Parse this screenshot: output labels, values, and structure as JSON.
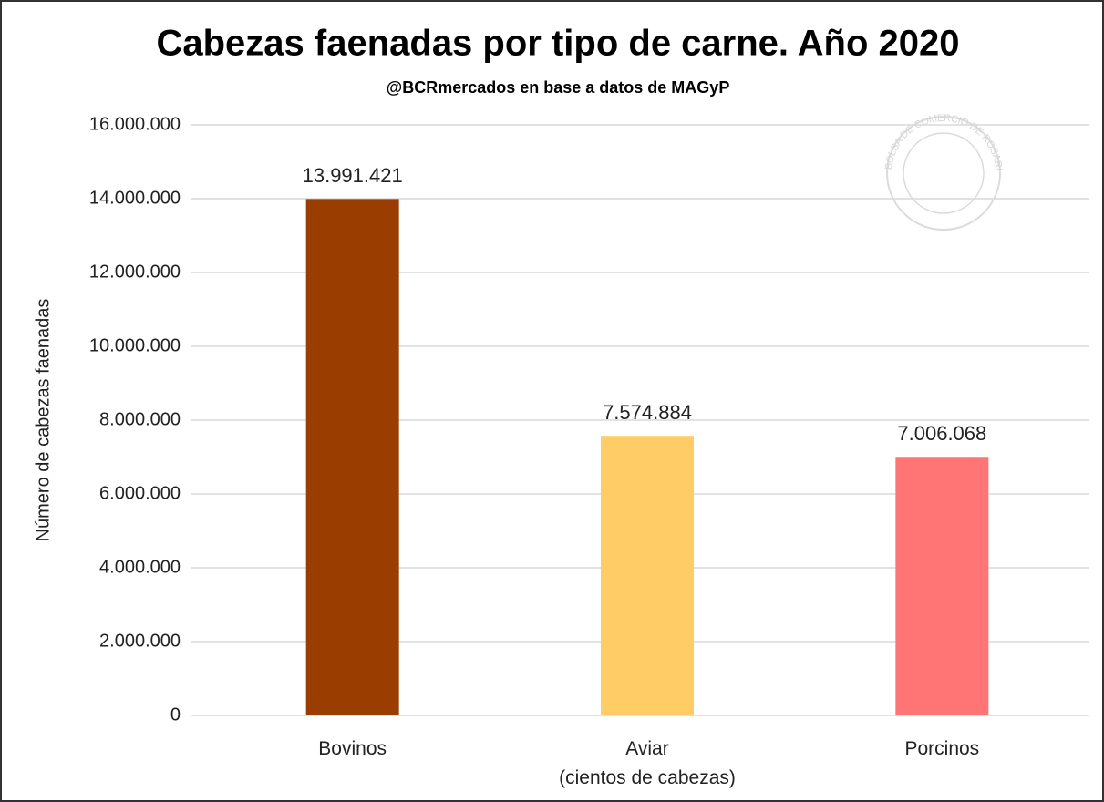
{
  "chart_data": {
    "type": "bar",
    "title": "Cabezas faenadas por tipo de carne. Año 2020",
    "subtitle": "@BCRmercados en base a datos de MAGyP",
    "y_label": "Número de cabezas faenadas",
    "watermark": "BOLSA DE COMERCIO DE ROSARIO",
    "categories": [
      "Bovinos",
      "Aviar\n(cientos de cabezas)",
      "Porcinos"
    ],
    "values": [
      13991421,
      7574884,
      7006068
    ],
    "value_labels": [
      "13.991.421",
      "7.574.884",
      "7.006.068"
    ],
    "colors": [
      "#993d00",
      "#ffcc66",
      "#ff7575"
    ],
    "ylim": [
      0,
      16000000
    ],
    "yticks": [
      0,
      {
        "value": 2000000,
        "label": "2.000.000"
      },
      {
        "value": 4000000,
        "label": "4.000.000"
      },
      {
        "value": 6000000,
        "label": "6.000.000"
      },
      {
        "value": 8000000,
        "label": "8.000.000"
      },
      {
        "value": 10000000,
        "label": "10.000.000"
      },
      {
        "value": 12000000,
        "label": "12.000.000"
      },
      {
        "value": 14000000,
        "label": "14.000.000"
      },
      {
        "value": 16000000,
        "label": "16.000.000"
      }
    ],
    "grid": true
  }
}
